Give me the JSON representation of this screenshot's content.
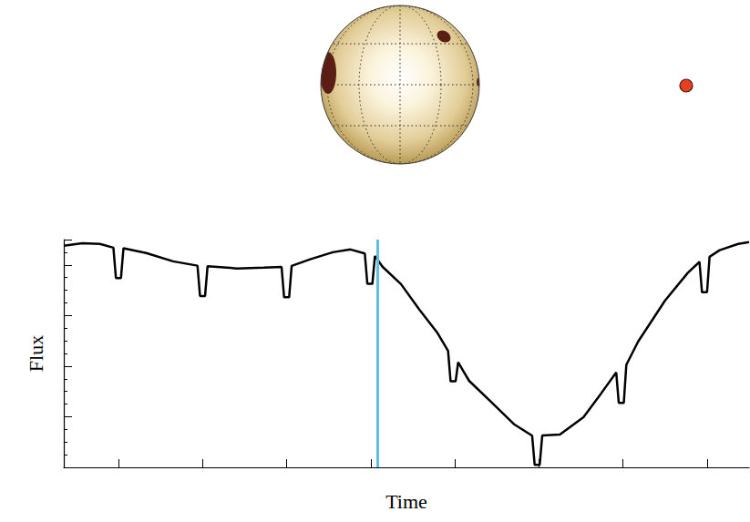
{
  "chart_data": {
    "type": "line",
    "x_label": "Time",
    "y_label": "Flux",
    "x": [
      0.35,
      0.57,
      0.78,
      0.94,
      0.97,
      1.03,
      1.06,
      1.33,
      1.65,
      1.94,
      1.97,
      2.03,
      2.06,
      2.41,
      2.73,
      2.94,
      2.97,
      3.03,
      3.06,
      3.28,
      3.55,
      3.76,
      3.93,
      3.96,
      4.02,
      4.05,
      4.14,
      4.36,
      4.58,
      4.79,
      4.92,
      4.95,
      5.01,
      5.04,
      5.17,
      5.44,
      5.71,
      5.92,
      5.95,
      6.01,
      6.04,
      6.25,
      6.53,
      6.74,
      6.92,
      6.95,
      7.01,
      7.04,
      7.18,
      7.5,
      7.77,
      7.91,
      7.94,
      8.0,
      8.03,
      8.15,
      8.37,
      8.5
    ],
    "values": [
      0.876,
      0.886,
      0.883,
      0.868,
      0.748,
      0.748,
      0.866,
      0.847,
      0.814,
      0.797,
      0.677,
      0.677,
      0.795,
      0.786,
      0.789,
      0.792,
      0.672,
      0.672,
      0.796,
      0.822,
      0.85,
      0.861,
      0.845,
      0.725,
      0.725,
      0.835,
      0.793,
      0.724,
      0.623,
      0.533,
      0.46,
      0.34,
      0.34,
      0.415,
      0.342,
      0.256,
      0.169,
      0.125,
      0.01,
      0.01,
      0.126,
      0.13,
      0.198,
      0.292,
      0.375,
      0.255,
      0.255,
      0.405,
      0.497,
      0.659,
      0.768,
      0.812,
      0.692,
      0.692,
      0.832,
      0.858,
      0.883,
      0.89
    ],
    "color": "#000000",
    "xlim": [
      0.35,
      8.5
    ],
    "xticks": [
      1,
      2,
      3,
      4,
      5,
      6,
      7,
      8
    ],
    "ylim": [
      0,
      0.9
    ],
    "yticks": [
      0,
      0.2,
      0.4,
      0.6,
      0.8
    ],
    "tick_labels": false,
    "grid": false,
    "vline": {
      "x": 4.08,
      "color": "#5bc0eb"
    }
  }
}
